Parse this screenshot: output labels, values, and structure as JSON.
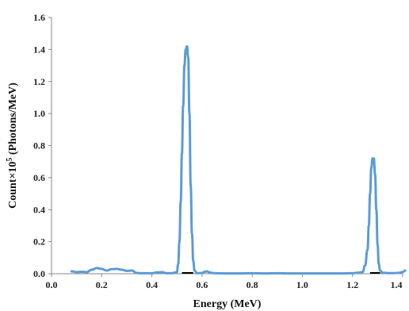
{
  "chart_data": {
    "type": "line",
    "title": "",
    "xlabel": "Energy (MeV)",
    "ylabel_main": "Count×10",
    "ylabel_sup": "5",
    "ylabel_unit": " (Photons/MeV)",
    "xlim": [
      0,
      1.4
    ],
    "ylim": [
      0,
      1.6
    ],
    "xticks": [
      "0.0",
      "0.2",
      "0.4",
      "0.6",
      "0.8",
      "1.0",
      "1.2",
      "1.4"
    ],
    "yticks": [
      "0.0",
      "0.2",
      "0.4",
      "0.6",
      "0.8",
      "1.0",
      "1.2",
      "1.4",
      "1.6"
    ],
    "grid": false,
    "series_color": "#5b9bd5",
    "series": [
      {
        "x": [
          0.08,
          0.1,
          0.12,
          0.14,
          0.16,
          0.18,
          0.2,
          0.22,
          0.24,
          0.26,
          0.28,
          0.3,
          0.32,
          0.34,
          0.36,
          0.38,
          0.4,
          0.42,
          0.44,
          0.46,
          0.48,
          0.5,
          0.505,
          0.51,
          0.515,
          0.52,
          0.525,
          0.53,
          0.535,
          0.54,
          0.545,
          0.55,
          0.555,
          0.56,
          0.565,
          0.57,
          0.58,
          0.6,
          0.61,
          0.62,
          0.63,
          0.65,
          0.7,
          0.75,
          0.8,
          0.85,
          0.9,
          0.95,
          1.0,
          1.05,
          1.1,
          1.15,
          1.2,
          1.22,
          1.24,
          1.25,
          1.26,
          1.265,
          1.27,
          1.275,
          1.28,
          1.285,
          1.29,
          1.295,
          1.3,
          1.305,
          1.31,
          1.32,
          1.34,
          1.36,
          1.38,
          1.4,
          1.41
        ],
        "y": [
          0.015,
          0.01,
          0.012,
          0.01,
          0.025,
          0.035,
          0.03,
          0.02,
          0.028,
          0.03,
          0.025,
          0.018,
          0.02,
          0.005,
          0.003,
          0.003,
          0.003,
          0.008,
          0.01,
          0.003,
          0.003,
          0.01,
          0.06,
          0.2,
          0.45,
          0.75,
          1.05,
          1.3,
          1.4,
          1.42,
          1.35,
          1.0,
          0.55,
          0.25,
          0.08,
          0.02,
          0.003,
          0.005,
          0.012,
          0.015,
          0.008,
          0.003,
          0.002,
          0.002,
          0.003,
          0.002,
          0.003,
          0.002,
          0.002,
          0.002,
          0.002,
          0.002,
          0.003,
          0.006,
          0.01,
          0.05,
          0.15,
          0.3,
          0.5,
          0.66,
          0.72,
          0.72,
          0.62,
          0.4,
          0.18,
          0.06,
          0.02,
          0.006,
          0.004,
          0.004,
          0.005,
          0.01,
          0.02
        ]
      }
    ]
  }
}
